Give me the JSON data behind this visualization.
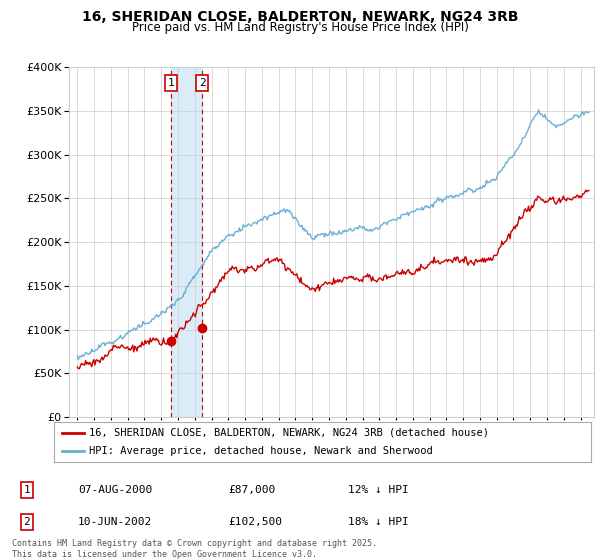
{
  "title_line1": "16, SHERIDAN CLOSE, BALDERTON, NEWARK, NG24 3RB",
  "title_line2": "Price paid vs. HM Land Registry's House Price Index (HPI)",
  "legend_label1": "16, SHERIDAN CLOSE, BALDERTON, NEWARK, NG24 3RB (detached house)",
  "legend_label2": "HPI: Average price, detached house, Newark and Sherwood",
  "transaction1": {
    "num": "1",
    "date": "07-AUG-2000",
    "price": "£87,000",
    "hpi": "12% ↓ HPI"
  },
  "transaction2": {
    "num": "2",
    "date": "10-JUN-2002",
    "price": "£102,500",
    "hpi": "18% ↓ HPI"
  },
  "t1_year": 2000.58,
  "t1_price": 87000,
  "t2_year": 2002.44,
  "t2_price": 102500,
  "hpi_color": "#6baed6",
  "price_color": "#cc0000",
  "marker_color": "#cc0000",
  "shade_color": "#d0e8f5",
  "ylim_min": 0,
  "ylim_max": 400000,
  "xlim_min": 1994.5,
  "xlim_max": 2025.8,
  "footer": "Contains HM Land Registry data © Crown copyright and database right 2025.\nThis data is licensed under the Open Government Licence v3.0.",
  "background_color": "#ffffff",
  "grid_color": "#cccccc"
}
